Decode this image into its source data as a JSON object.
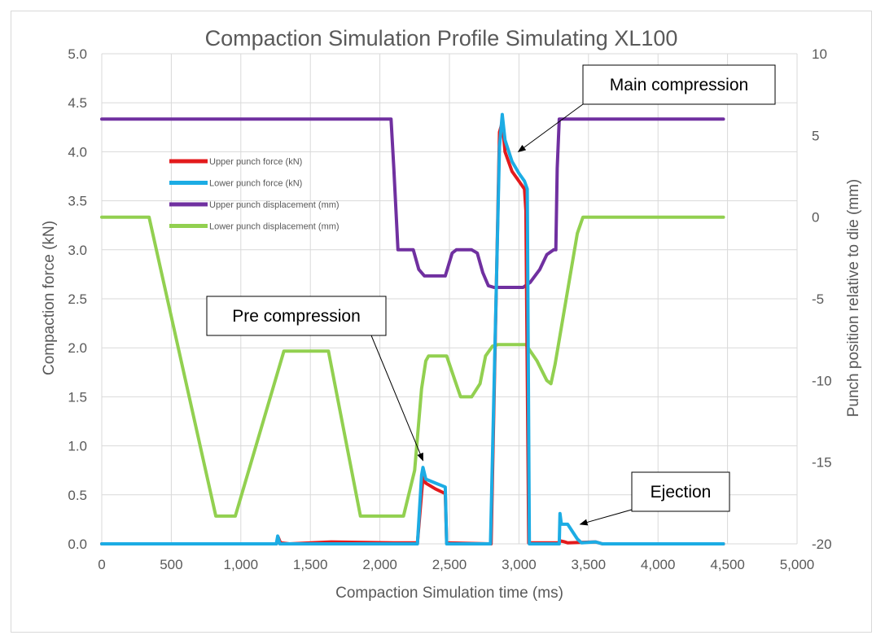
{
  "chart_data": {
    "type": "line",
    "title": "Compaction Simulation Profile Simulating XL100",
    "xlabel": "Compaction Simulation time (ms)",
    "ylabel": "Compaction force (kN)",
    "y2label": "Punch position relative to die (mm)",
    "xlim": [
      0,
      5000
    ],
    "ylim": [
      0,
      5
    ],
    "y2lim": [
      -20,
      10
    ],
    "x_ticks": [
      "0",
      "500",
      "1,000",
      "1,500",
      "2,000",
      "2,500",
      "3,000",
      "3,500",
      "4,000",
      "4,500",
      "5,000"
    ],
    "y_ticks": [
      "0.0",
      "0.5",
      "1.0",
      "1.5",
      "2.0",
      "2.5",
      "3.0",
      "3.5",
      "4.0",
      "4.5",
      "5.0"
    ],
    "y2_ticks": [
      "-20",
      "-15",
      "-10",
      "-5",
      "0",
      "5",
      "10"
    ],
    "grid": true,
    "legend_position": "upper-left inside plot",
    "series": [
      {
        "name": "Upper punch force (kN)",
        "axis": "left",
        "color": "#e31a1c",
        "points": [
          [
            0,
            0
          ],
          [
            350,
            0
          ],
          [
            1255,
            0
          ],
          [
            1268,
            0.07
          ],
          [
            1285,
            0.01
          ],
          [
            1350,
            0
          ],
          [
            1650,
            0.02
          ],
          [
            2100,
            0.01
          ],
          [
            2270,
            0.01
          ],
          [
            2310,
            0.68
          ],
          [
            2330,
            0.62
          ],
          [
            2400,
            0.56
          ],
          [
            2460,
            0.52
          ],
          [
            2470,
            0.52
          ],
          [
            2480,
            0.01
          ],
          [
            2790,
            0
          ],
          [
            2800,
            0
          ],
          [
            2860,
            4.2
          ],
          [
            2880,
            4.3
          ],
          [
            2900,
            4.0
          ],
          [
            2950,
            3.8
          ],
          [
            3000,
            3.7
          ],
          [
            3040,
            3.62
          ],
          [
            3050,
            3.4
          ],
          [
            3070,
            0.01
          ],
          [
            3280,
            0.01
          ],
          [
            3300,
            0.03
          ],
          [
            3330,
            0.02
          ],
          [
            3350,
            0.01
          ],
          [
            3550,
            0.02
          ],
          [
            3600,
            0
          ],
          [
            4470,
            0
          ]
        ]
      },
      {
        "name": "Lower punch force (kN)",
        "axis": "left",
        "color": "#1cace4",
        "points": [
          [
            0,
            0
          ],
          [
            1255,
            0
          ],
          [
            1265,
            0.08
          ],
          [
            1280,
            0
          ],
          [
            2270,
            0
          ],
          [
            2300,
            0.7
          ],
          [
            2310,
            0.78
          ],
          [
            2330,
            0.66
          ],
          [
            2400,
            0.62
          ],
          [
            2470,
            0.58
          ],
          [
            2480,
            0
          ],
          [
            2795,
            0
          ],
          [
            2810,
            0.9
          ],
          [
            2860,
            4.05
          ],
          [
            2880,
            4.38
          ],
          [
            2900,
            4.12
          ],
          [
            2950,
            3.9
          ],
          [
            3000,
            3.78
          ],
          [
            3040,
            3.7
          ],
          [
            3060,
            3.62
          ],
          [
            3075,
            0
          ],
          [
            3290,
            0
          ],
          [
            3295,
            0.31
          ],
          [
            3305,
            0.2
          ],
          [
            3350,
            0.2
          ],
          [
            3420,
            0.05
          ],
          [
            3450,
            0.01
          ],
          [
            3550,
            0.02
          ],
          [
            3600,
            0
          ],
          [
            4470,
            0
          ]
        ]
      },
      {
        "name": "Upper punch displacement (mm)",
        "axis": "right",
        "color": "#7030a0",
        "points": [
          [
            0,
            6
          ],
          [
            2080,
            6
          ],
          [
            2100,
            3
          ],
          [
            2130,
            -2
          ],
          [
            2200,
            -2
          ],
          [
            2240,
            -2
          ],
          [
            2280,
            -3.2
          ],
          [
            2320,
            -3.6
          ],
          [
            2400,
            -3.6
          ],
          [
            2470,
            -3.6
          ],
          [
            2520,
            -2.2
          ],
          [
            2550,
            -2
          ],
          [
            2660,
            -2
          ],
          [
            2700,
            -2.2
          ],
          [
            2740,
            -3.4
          ],
          [
            2780,
            -4.2
          ],
          [
            2820,
            -4.3
          ],
          [
            2950,
            -4.3
          ],
          [
            3030,
            -4.3
          ],
          [
            3080,
            -4
          ],
          [
            3150,
            -3.2
          ],
          [
            3200,
            -2.3
          ],
          [
            3250,
            -2
          ],
          [
            3265,
            -2
          ],
          [
            3275,
            3
          ],
          [
            3290,
            6
          ],
          [
            4470,
            6
          ]
        ]
      },
      {
        "name": "Lower punch displacement (mm)",
        "axis": "right",
        "color": "#92d050",
        "points": [
          [
            0,
            0
          ],
          [
            340,
            0
          ],
          [
            820,
            -18.3
          ],
          [
            960,
            -18.3
          ],
          [
            1310,
            -8.2
          ],
          [
            1630,
            -8.2
          ],
          [
            1860,
            -18.3
          ],
          [
            2170,
            -18.3
          ],
          [
            2250,
            -15.5
          ],
          [
            2300,
            -10.5
          ],
          [
            2330,
            -8.8
          ],
          [
            2350,
            -8.5
          ],
          [
            2480,
            -8.5
          ],
          [
            2540,
            -10
          ],
          [
            2580,
            -11
          ],
          [
            2660,
            -11
          ],
          [
            2720,
            -10.2
          ],
          [
            2760,
            -8.5
          ],
          [
            2810,
            -7.9
          ],
          [
            2850,
            -7.8
          ],
          [
            3050,
            -7.8
          ],
          [
            3130,
            -8.8
          ],
          [
            3200,
            -10
          ],
          [
            3230,
            -10.2
          ],
          [
            3260,
            -9
          ],
          [
            3420,
            -1
          ],
          [
            3460,
            0
          ],
          [
            4470,
            0
          ]
        ]
      }
    ],
    "annotations": [
      {
        "text": "Main compression",
        "target": [
          2995,
          4.0
        ]
      },
      {
        "text": "Pre compression",
        "target": [
          2310,
          0.85
        ]
      },
      {
        "text": "Ejection",
        "target": [
          3440,
          0.2
        ]
      }
    ]
  }
}
